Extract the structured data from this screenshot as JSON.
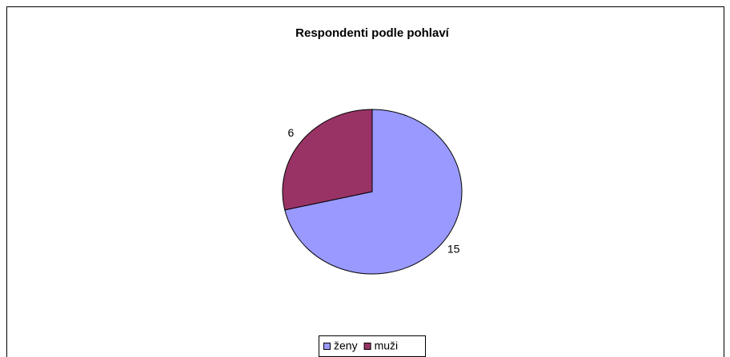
{
  "chart_data": {
    "type": "pie",
    "title": "Respondenti podle pohlaví",
    "categories": [
      "ženy",
      "muži"
    ],
    "values": [
      15,
      6
    ],
    "colors": [
      "#9999ff",
      "#993366"
    ],
    "legend": "bottom"
  }
}
